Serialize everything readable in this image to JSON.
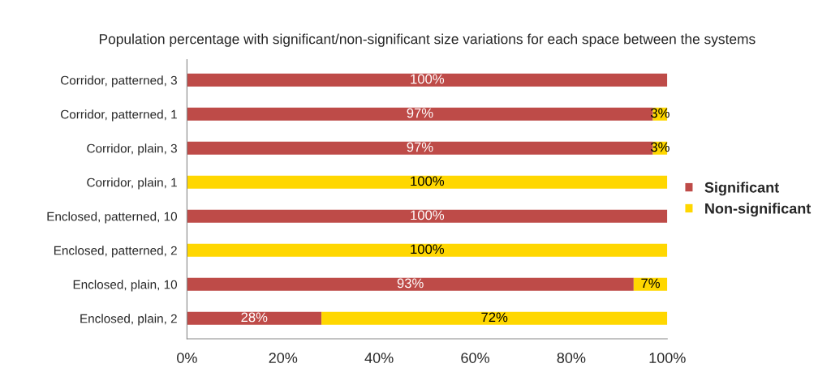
{
  "chart_data": {
    "type": "bar",
    "orientation": "horizontal",
    "stacked": true,
    "title": "Population percentage with significant/non-significant size variations for each space between the systems",
    "categories": [
      "Corridor, patterned, 3",
      "Corridor, patterned, 1",
      "Corridor, plain, 3",
      "Corridor, plain, 1",
      "Enclosed, patterned, 10",
      "Enclosed, patterned, 2",
      "Enclosed, plain, 10",
      "Enclosed, plain, 2"
    ],
    "series": [
      {
        "name": "Significant",
        "color": "#be4b48",
        "values": [
          100,
          97,
          97,
          0,
          100,
          0,
          93,
          28
        ],
        "value_labels": [
          "100%",
          "97%",
          "97%",
          null,
          "100%",
          null,
          "93%",
          "28%"
        ]
      },
      {
        "name": "Non-significant",
        "color": "#ffd700",
        "values": [
          0,
          3,
          3,
          100,
          0,
          100,
          7,
          72
        ],
        "value_labels": [
          null,
          "3%",
          "3%",
          "100%",
          null,
          "100%",
          "7%",
          "72%"
        ]
      }
    ],
    "xlim": [
      0,
      100
    ],
    "xticks": [
      {
        "value": 0,
        "label": "0%"
      },
      {
        "value": 20,
        "label": "20%"
      },
      {
        "value": 40,
        "label": "40%"
      },
      {
        "value": 60,
        "label": "60%"
      },
      {
        "value": 80,
        "label": "80%"
      },
      {
        "value": 100,
        "label": "100%"
      }
    ],
    "grid": false,
    "legend": "right"
  }
}
